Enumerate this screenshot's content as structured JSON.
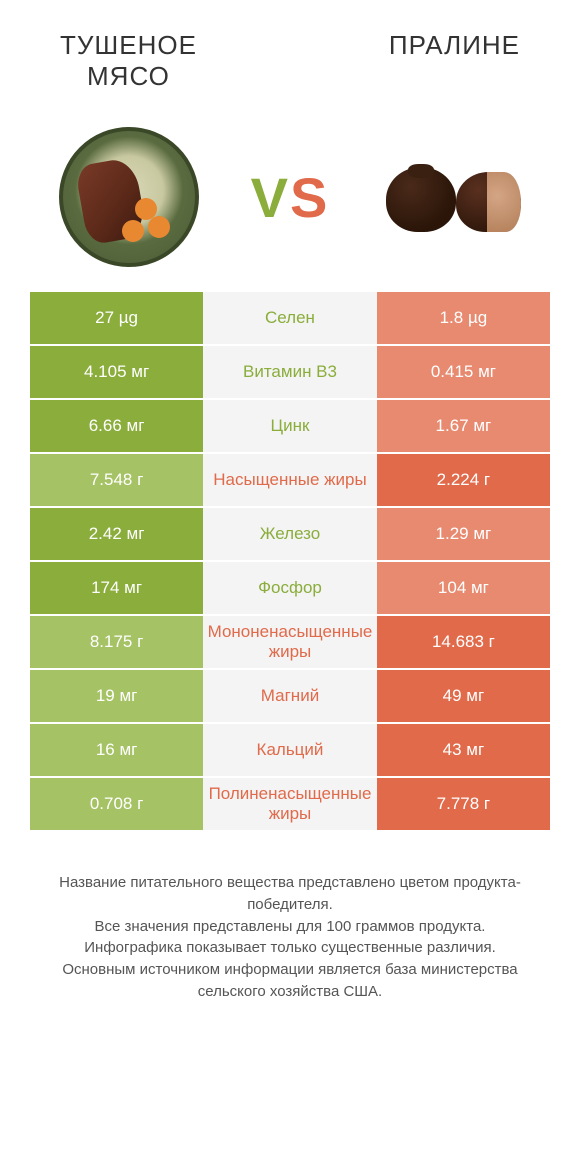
{
  "titles": {
    "left": "ТУШЕНОЕ\nМЯСО",
    "right": "ПРАЛИНЕ"
  },
  "vs": {
    "v": "V",
    "s": "S"
  },
  "colors": {
    "green": "#8aad3b",
    "green_light": "#a5c264",
    "orange": "#e06a4a",
    "orange_light": "#e88a70",
    "mid_bg": "#f4f4f4",
    "text": "#333333"
  },
  "rows": [
    {
      "nutrient": "Селен",
      "left": "27 µg",
      "right": "1.8 µg",
      "winner": "left"
    },
    {
      "nutrient": "Витамин B3",
      "left": "4.105 мг",
      "right": "0.415 мг",
      "winner": "left"
    },
    {
      "nutrient": "Цинк",
      "left": "6.66 мг",
      "right": "1.67 мг",
      "winner": "left"
    },
    {
      "nutrient": "Насыщенные жиры",
      "left": "7.548 г",
      "right": "2.224 г",
      "winner": "right"
    },
    {
      "nutrient": "Железо",
      "left": "2.42 мг",
      "right": "1.29 мг",
      "winner": "left"
    },
    {
      "nutrient": "Фосфор",
      "left": "174 мг",
      "right": "104 мг",
      "winner": "left"
    },
    {
      "nutrient": "Мононенасыщенные жиры",
      "left": "8.175 г",
      "right": "14.683 г",
      "winner": "right"
    },
    {
      "nutrient": "Магний",
      "left": "19 мг",
      "right": "49 мг",
      "winner": "right"
    },
    {
      "nutrient": "Кальций",
      "left": "16 мг",
      "right": "43 мг",
      "winner": "right"
    },
    {
      "nutrient": "Полиненасыщенные жиры",
      "left": "0.708 г",
      "right": "7.778 г",
      "winner": "right"
    }
  ],
  "footnote": "Название питательного вещества представлено цветом продукта-победителя.\nВсе значения представлены для 100 граммов продукта.\nИнфографика показывает только существенные различия.\nОсновным источником информации является база министерства сельского хозяйства США."
}
